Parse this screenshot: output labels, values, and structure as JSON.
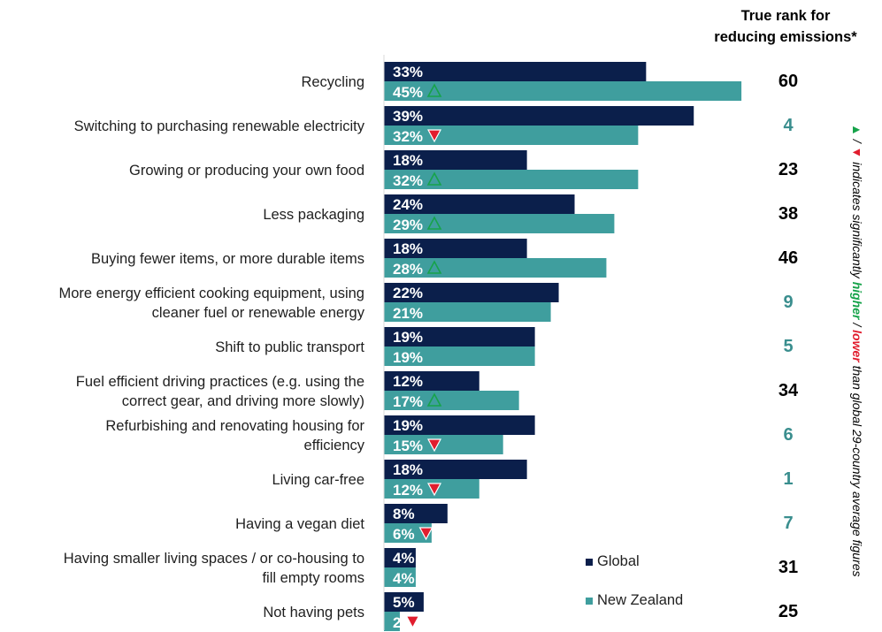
{
  "chart_data": {
    "type": "bar",
    "orientation": "horizontal",
    "categories": [
      [
        "Recycling"
      ],
      [
        "Switching to purchasing renewable electricity"
      ],
      [
        "Growing or producing your own food"
      ],
      [
        "Less packaging"
      ],
      [
        "Buying fewer items, or more durable items"
      ],
      [
        "More energy efficient cooking equipment, using",
        "cleaner fuel or renewable energy"
      ],
      [
        "Shift to public transport"
      ],
      [
        "Fuel efficient driving practices (e.g. using the",
        "correct gear, and driving more slowly)"
      ],
      [
        "Refurbishing and renovating housing for",
        "efficiency"
      ],
      [
        "Living car-free"
      ],
      [
        "Having a vegan diet"
      ],
      [
        "Having smaller living spaces / or co-housing to",
        "fill empty rooms"
      ],
      [
        "Not having pets"
      ]
    ],
    "series": [
      {
        "name": "Global",
        "color": "#0b1f4b",
        "values": [
          33,
          39,
          18,
          24,
          18,
          22,
          19,
          12,
          19,
          18,
          8,
          4,
          5
        ],
        "labels": [
          "33%",
          "39%",
          "18%",
          "24%",
          "18%",
          "22%",
          "19%",
          "12%",
          "19%",
          "18%",
          "8%",
          "4%",
          "5%"
        ]
      },
      {
        "name": "New Zealand",
        "color": "#3f9e9e",
        "values": [
          45,
          32,
          32,
          29,
          28,
          21,
          19,
          17,
          15,
          12,
          6,
          4,
          2
        ],
        "labels": [
          "45%",
          "32%",
          "32%",
          "29%",
          "28%",
          "21%",
          "19%",
          "17%",
          "15%",
          "12%",
          "6%",
          "4%",
          "2"
        ],
        "significance": [
          "higher",
          "lower",
          "higher",
          "higher",
          "higher",
          "",
          "",
          "higher",
          "lower",
          "lower",
          "lower",
          "",
          "lower"
        ]
      }
    ],
    "true_rank": {
      "title_lines": [
        "True rank for",
        "reducing emissions*"
      ],
      "values": [
        "60",
        "4",
        "23",
        "38",
        "46",
        "9",
        "5",
        "34",
        "6",
        "1",
        "7",
        "31",
        "25"
      ],
      "highlight": [
        false,
        true,
        false,
        false,
        false,
        true,
        true,
        false,
        true,
        true,
        true,
        false,
        false
      ],
      "highlight_color": "#3a8e8e",
      "normal_color": "#000000"
    },
    "legend": {
      "placement": "bottom-right",
      "items": [
        "Global",
        "New Zealand"
      ]
    },
    "note": {
      "parts": [
        {
          "text": "▲",
          "color": "#16a34a"
        },
        {
          "text": " / ",
          "color": "#000000"
        },
        {
          "text": "▼",
          "color": "#e11d2e"
        },
        {
          "text": " indicates significantly ",
          "color": "#000000"
        },
        {
          "text": "higher",
          "color": "#16a34a",
          "bold": true
        },
        {
          "text": " / ",
          "color": "#000000"
        },
        {
          "text": "lower",
          "color": "#e11d2e",
          "bold": true
        },
        {
          "text": " than global 29-country average figures",
          "color": "#000000"
        }
      ]
    },
    "colors": {
      "higher": "#16a34a",
      "lower": "#e11d2e",
      "label": "#1f1f1f"
    },
    "xlim": [
      0,
      50
    ],
    "grid": false
  }
}
